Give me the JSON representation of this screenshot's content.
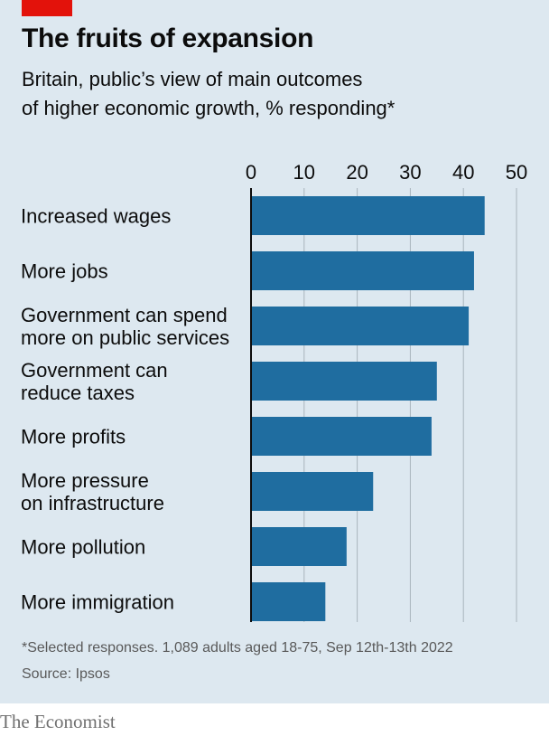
{
  "header": {
    "title": "The fruits of expansion",
    "subtitle_line1": "Britain, public’s view of main outcomes",
    "subtitle_line2": "of higher economic growth, % responding*"
  },
  "footer": {
    "note": "*Selected responses. 1,089 adults aged 18-75, Sep 12th-13th 2022",
    "source": "Source: Ipsos",
    "brand": "The Economist"
  },
  "colors": {
    "bar": "#1f6da0",
    "accent": "#e3120b",
    "background": "#dde8f0",
    "grid": "#a9b4bd"
  },
  "chart_data": {
    "type": "bar",
    "orientation": "horizontal",
    "title": "The fruits of expansion",
    "subtitle": "Britain, public’s view of main outcomes of higher economic growth, % responding*",
    "categories": [
      [
        "Increased wages"
      ],
      [
        "More jobs"
      ],
      [
        "Government can spend",
        "more on public services"
      ],
      [
        "Government can",
        "reduce taxes"
      ],
      [
        "More profits"
      ],
      [
        "More pressure",
        "on infrastructure"
      ],
      [
        "More pollution"
      ],
      [
        "More immigration"
      ]
    ],
    "values": [
      44,
      42,
      41,
      35,
      34,
      23,
      18,
      14
    ],
    "xlim": [
      0,
      50
    ],
    "xticks": [
      0,
      10,
      20,
      30,
      40,
      50
    ],
    "grid": true,
    "axis_position": "top"
  }
}
